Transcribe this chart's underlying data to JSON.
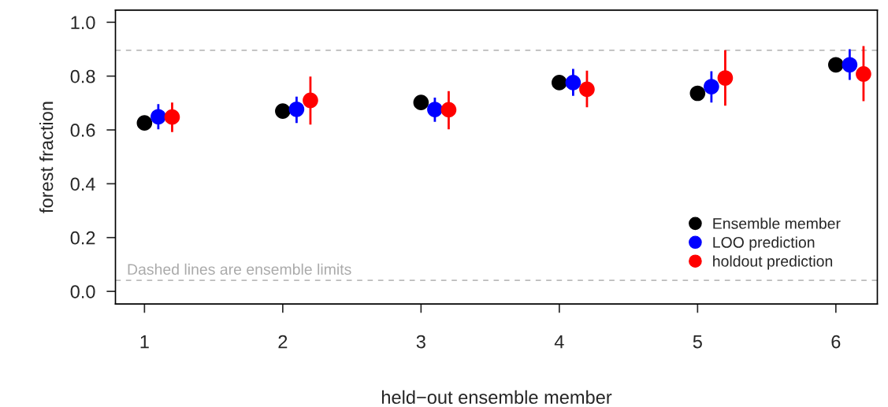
{
  "chart_data": {
    "type": "scatter",
    "xlabel": "held−out ensemble member",
    "ylabel": "forest fraction",
    "annotations": [
      "Dashed lines are ensemble limits"
    ],
    "xlim": [
      0.79,
      6.3
    ],
    "xticks": [
      1,
      2,
      3,
      4,
      5,
      6
    ],
    "ylim": [
      -0.047,
      1.045
    ],
    "yticks": [
      {
        "value": 0,
        "label": "0.0"
      },
      0.2,
      0.4,
      0.6,
      0.8,
      {
        "value": 1,
        "label": "1.0"
      }
    ],
    "grid": false,
    "legend": "bottom right",
    "marker": "circle",
    "ref_lines": [
      {
        "axis": "y",
        "value": 0.896,
        "color": "#bbbbbb",
        "line_style": "dashed"
      },
      {
        "axis": "y",
        "value": 0.041,
        "color": "#bbbbbb",
        "line_style": "dashed"
      }
    ],
    "series": [
      {
        "name": "Ensemble member",
        "color": "#000000",
        "x": [
          1,
          2,
          3,
          4,
          5,
          6
        ],
        "values": [
          0.626,
          0.67,
          0.702,
          0.776,
          0.736,
          0.842
        ]
      },
      {
        "name": "LOO prediction",
        "color": "#0000ff",
        "x": [
          1.1,
          2.1,
          3.1,
          4.1,
          5.1,
          6.1
        ],
        "values": [
          0.649,
          0.677,
          0.676,
          0.776,
          0.761,
          0.842
        ],
        "errors": [
          [
            0.602,
            0.696
          ],
          [
            0.626,
            0.724
          ],
          [
            0.63,
            0.72
          ],
          [
            0.727,
            0.827
          ],
          [
            0.702,
            0.818
          ],
          [
            0.786,
            0.9
          ]
        ]
      },
      {
        "name": "holdout prediction",
        "color": "#ff0000",
        "x": [
          1.2,
          2.2,
          3.2,
          4.2,
          5.2,
          6.2
        ],
        "values": [
          0.648,
          0.71,
          0.675,
          0.751,
          0.793,
          0.808
        ],
        "errors": [
          [
            0.592,
            0.702
          ],
          [
            0.62,
            0.798
          ],
          [
            0.602,
            0.744
          ],
          [
            0.684,
            0.82
          ],
          [
            0.69,
            0.896
          ],
          [
            0.707,
            0.912
          ]
        ]
      }
    ]
  }
}
